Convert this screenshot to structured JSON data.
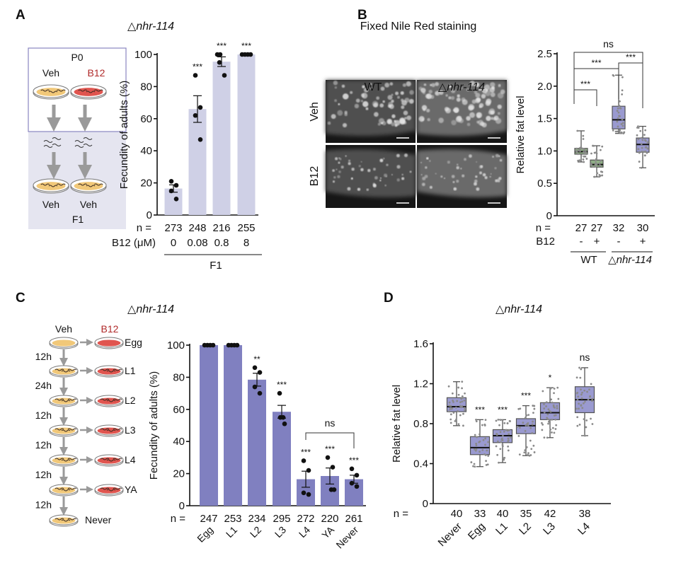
{
  "colors": {
    "bar_A": "#cfd0e6",
    "bar_C": "#8080c0",
    "box_green": "#8fae86",
    "box_purple": "#9a9ad0",
    "b12_red": "#b02a2a",
    "veh_plate": "#f1c879",
    "b12_plate": "#e0554f",
    "diagram_fill": "#e5e5f0",
    "diagram_border": "#8a86c0"
  },
  "panels": {
    "A": {
      "label": "A",
      "title_symbol": "△",
      "title_gene": "nhr-114",
      "diagram": {
        "top_generation": "P0",
        "veh": "Veh",
        "b12": "B12",
        "bottom_left": "Veh",
        "bottom_right": "Veh",
        "bottom_generation": "F1"
      }
    },
    "B": {
      "label": "B",
      "title": "Fixed Nile Red staining",
      "images": {
        "col_wt": "WT",
        "col_mut_symbol": "△",
        "col_mut_gene": "nhr-114",
        "row_veh": "Veh",
        "row_b12": "B12"
      }
    },
    "C": {
      "label": "C",
      "title_symbol": "△",
      "title_gene": "nhr-114",
      "diagram": {
        "veh": "Veh",
        "b12": "B12",
        "stages": [
          "Egg",
          "L1",
          "L2",
          "L3",
          "L4",
          "YA",
          "Never"
        ],
        "intervals": [
          "12h",
          "24h",
          "12h",
          "12h",
          "12h",
          "12h"
        ]
      }
    },
    "D": {
      "label": "D",
      "title_symbol": "△",
      "title_gene": "nhr-114"
    }
  },
  "chart_data": [
    {
      "panel": "A",
      "type": "bar",
      "title": "△nhr-114",
      "ylabel": "Fecundity of adults (%)",
      "ylim": [
        0,
        100
      ],
      "yticks": [
        "0",
        "20",
        "40",
        "60",
        "80",
        "100"
      ],
      "row_label_n": "n =",
      "n": [
        "273",
        "248",
        "216",
        "255"
      ],
      "category_label": "B12 (μM)",
      "categories": [
        "0",
        "0.08",
        "0.8",
        "8"
      ],
      "group_label": "F1",
      "values": [
        16.5,
        66,
        95.5,
        100
      ],
      "sem": [
        2.3,
        8.3,
        3,
        0
      ],
      "points": [
        [
          21,
          18.5,
          15,
          10
        ],
        [
          87,
          67,
          62,
          47
        ],
        [
          100,
          100,
          95,
          87
        ],
        [
          100,
          100,
          100,
          100
        ]
      ],
      "significance": [
        "",
        "***",
        "***",
        "***"
      ]
    },
    {
      "panel": "B",
      "type": "box",
      "ylabel": "Relative fat level",
      "ylim": [
        0,
        2.5
      ],
      "yticks": [
        "0",
        "0.5",
        "1.0",
        "1.5",
        "2.0",
        "2.5"
      ],
      "row_label_n": "n =",
      "n": [
        "27",
        "27",
        "32",
        "30"
      ],
      "b12_label": "B12",
      "b12": [
        "-",
        "+",
        "-",
        "+"
      ],
      "groups": [
        {
          "symbol": "",
          "label": "WT"
        },
        {
          "symbol": "△",
          "label": "nhr-114"
        }
      ],
      "boxes": [
        {
          "min": 0.83,
          "q1": 0.95,
          "median": 0.99,
          "q3": 1.04,
          "max": 1.31,
          "color": "green"
        },
        {
          "min": 0.6,
          "q1": 0.75,
          "median": 0.79,
          "q3": 0.86,
          "max": 1.08,
          "color": "green"
        },
        {
          "min": 1.27,
          "q1": 1.34,
          "median": 1.48,
          "q3": 1.69,
          "max": 2.17,
          "color": "purple"
        },
        {
          "min": 0.74,
          "q1": 0.98,
          "median": 1.1,
          "q3": 1.2,
          "max": 1.38,
          "color": "purple"
        }
      ],
      "comparisons": [
        {
          "from": 0,
          "to": 1,
          "label": "***"
        },
        {
          "from": 0,
          "to": 2,
          "label": "***"
        },
        {
          "from": 2,
          "to": 3,
          "label": "***"
        },
        {
          "from": 0,
          "to": 3,
          "label": "ns"
        }
      ]
    },
    {
      "panel": "C",
      "type": "bar",
      "title": "△nhr-114",
      "ylabel": "Fecundity of adults (%)",
      "ylim": [
        0,
        100
      ],
      "yticks": [
        "0",
        "20",
        "40",
        "60",
        "80",
        "100"
      ],
      "row_label_n": "n =",
      "n": [
        "247",
        "253",
        "234",
        "295",
        "272",
        "220",
        "261"
      ],
      "categories": [
        "Egg",
        "L1",
        "L2",
        "L3",
        "L4",
        "YA",
        "Never"
      ],
      "values": [
        100,
        100,
        78.5,
        58.5,
        16.5,
        18.5,
        16.5
      ],
      "sem": [
        0,
        0,
        4,
        4,
        5,
        5,
        2.5
      ],
      "points": [
        [
          100,
          100,
          100,
          100
        ],
        [
          100,
          100,
          100,
          100
        ],
        [
          86,
          83,
          74,
          70
        ],
        [
          70,
          55,
          55,
          51
        ],
        [
          28,
          22,
          8,
          7
        ],
        [
          30,
          24,
          10,
          10
        ],
        [
          23,
          19,
          14,
          12
        ]
      ],
      "significance": [
        "",
        "",
        "**",
        "***",
        "***",
        "***",
        "***"
      ],
      "comparisons": [
        {
          "from": 4,
          "to": 6,
          "label": "ns"
        }
      ]
    },
    {
      "panel": "D",
      "type": "box",
      "title": "△nhr-114",
      "ylabel": "Relative fat level",
      "ylim": [
        0,
        1.6
      ],
      "yticks": [
        "0",
        "0.4",
        "0.8",
        "1.2",
        "1.6"
      ],
      "row_label_n": "n =",
      "n": [
        "40",
        "33",
        "40",
        "35",
        "42",
        "38"
      ],
      "categories": [
        "Never",
        "Egg",
        "L1",
        "L2",
        "L3",
        "L4"
      ],
      "boxes": [
        {
          "min": 0.78,
          "q1": 0.92,
          "median": 0.97,
          "q3": 1.06,
          "max": 1.22
        },
        {
          "min": 0.37,
          "q1": 0.49,
          "median": 0.56,
          "q3": 0.67,
          "max": 0.84
        },
        {
          "min": 0.41,
          "q1": 0.61,
          "median": 0.68,
          "q3": 0.74,
          "max": 0.84
        },
        {
          "min": 0.48,
          "q1": 0.7,
          "median": 0.78,
          "q3": 0.85,
          "max": 0.98
        },
        {
          "min": 0.66,
          "q1": 0.84,
          "median": 0.91,
          "q3": 1.01,
          "max": 1.16
        },
        {
          "min": 0.68,
          "q1": 0.91,
          "median": 1.04,
          "q3": 1.17,
          "max": 1.36
        }
      ],
      "significance": [
        "",
        "***",
        "***",
        "***",
        "*",
        "ns"
      ]
    }
  ]
}
